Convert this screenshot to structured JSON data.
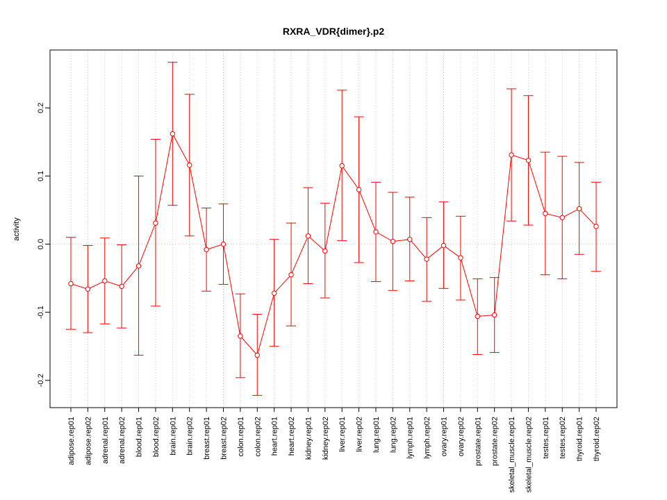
{
  "chart_data": {
    "type": "line",
    "title": "RXRA_VDR{dimer}.p2",
    "xlabel": "",
    "ylabel": "activity",
    "ylim": [
      -0.24,
      0.285
    ],
    "yticks": [
      -0.2,
      -0.1,
      0.0,
      0.1,
      0.2
    ],
    "ytick_labels": [
      "-0.2",
      "-0.1",
      "0.0",
      "0.1",
      "0.2"
    ],
    "grid": true,
    "color": "#ff0000",
    "categories": [
      "adipose.rep01",
      "adipose.rep02",
      "adrenal.rep01",
      "adrenal.rep02",
      "blood.rep01",
      "blood.rep02",
      "brain.rep01",
      "brain.rep02",
      "breast.rep01",
      "breast.rep02",
      "colon.rep01",
      "colon.rep02",
      "heart.rep01",
      "heart.rep02",
      "kidney.rep01",
      "kidney.rep02",
      "liver.rep01",
      "liver.rep02",
      "lung.rep01",
      "lung.rep02",
      "lymph.rep01",
      "lymph.rep02",
      "ovary.rep01",
      "ovary.rep02",
      "prostate.rep01",
      "prostate.rep02",
      "skeletal_muscle.rep01",
      "skeletal_muscle.rep02",
      "testes.rep01",
      "testes.rep02",
      "thyroid.rep01",
      "thyroid.rep02"
    ],
    "values": [
      -0.058,
      -0.066,
      -0.054,
      -0.062,
      -0.032,
      0.031,
      0.162,
      0.116,
      -0.008,
      0.0,
      -0.135,
      -0.163,
      -0.072,
      -0.045,
      0.012,
      -0.01,
      0.115,
      0.08,
      0.018,
      0.004,
      0.007,
      -0.022,
      -0.002,
      -0.02,
      -0.106,
      -0.104,
      0.131,
      0.123,
      0.045,
      0.039,
      0.052,
      0.026
    ],
    "upper": [
      0.01,
      -0.002,
      0.009,
      -0.001,
      0.1,
      0.154,
      0.267,
      0.22,
      0.053,
      0.059,
      -0.073,
      -0.103,
      0.007,
      0.031,
      0.083,
      0.06,
      0.226,
      0.187,
      0.091,
      0.076,
      0.069,
      0.039,
      0.062,
      0.041,
      -0.051,
      -0.049,
      0.228,
      0.218,
      0.135,
      0.129,
      0.12,
      0.091
    ],
    "lower": [
      -0.125,
      -0.13,
      -0.117,
      -0.123,
      -0.163,
      -0.091,
      0.057,
      0.012,
      -0.069,
      -0.059,
      -0.196,
      -0.222,
      -0.15,
      -0.12,
      -0.058,
      -0.079,
      0.005,
      -0.027,
      -0.055,
      -0.068,
      -0.054,
      -0.084,
      -0.065,
      -0.082,
      -0.162,
      -0.159,
      0.034,
      0.028,
      -0.045,
      -0.051,
      -0.015,
      -0.04
    ]
  }
}
